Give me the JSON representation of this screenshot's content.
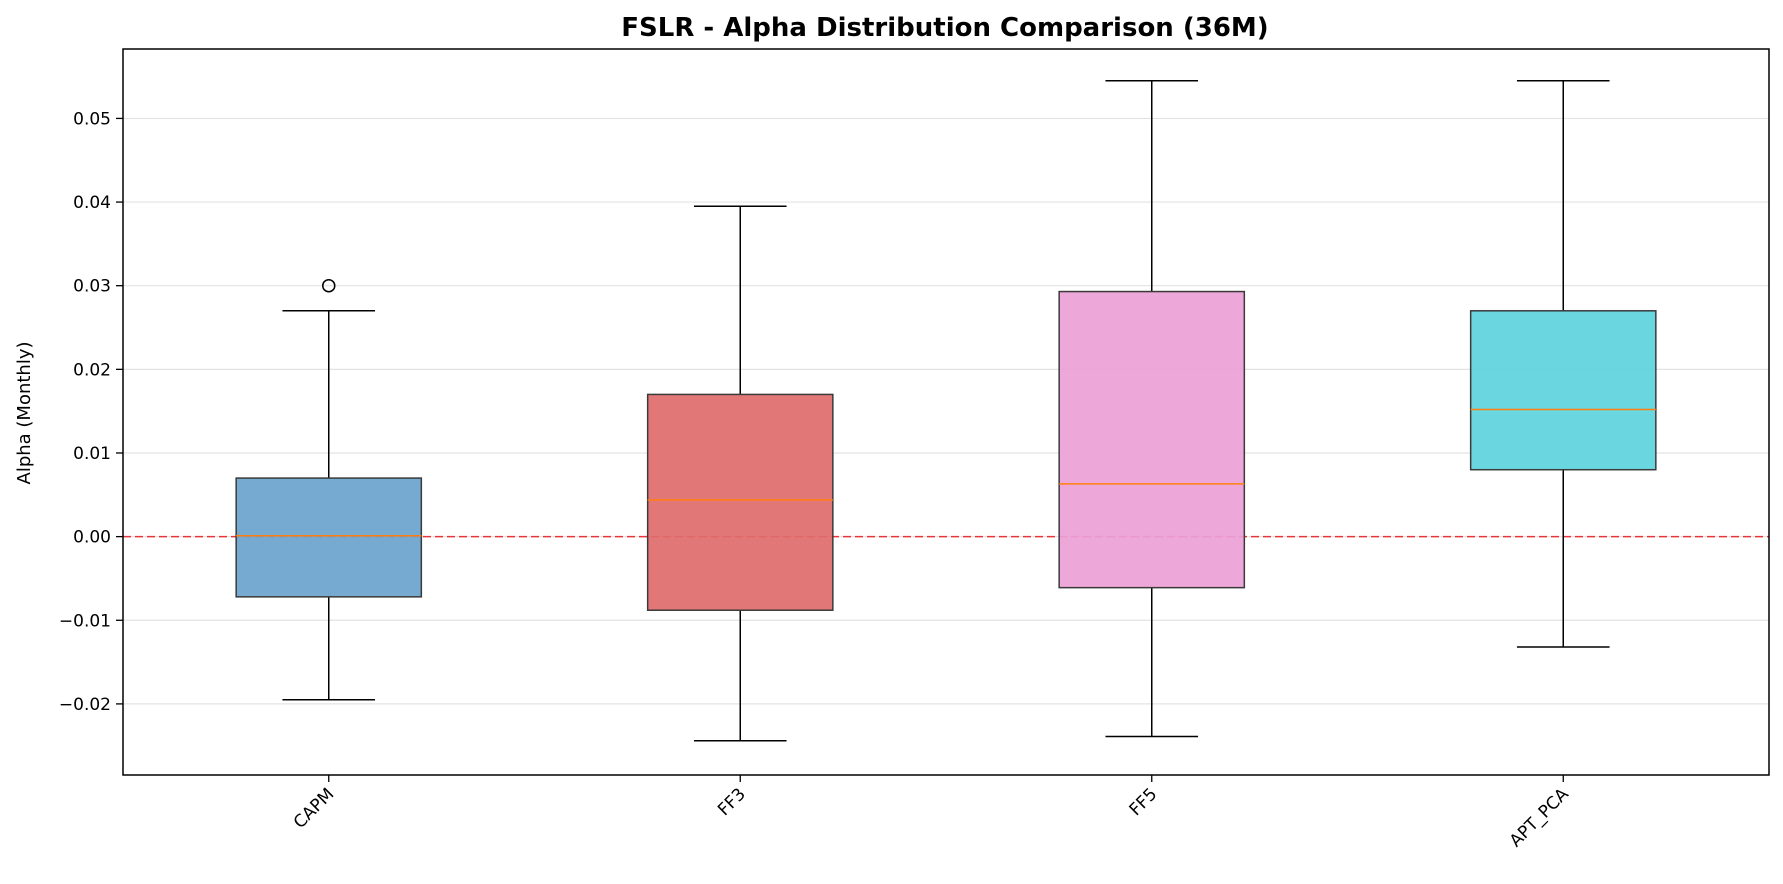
{
  "chart_data": {
    "type": "box",
    "title": "FSLR - Alpha Distribution Comparison (36M)",
    "xlabel": "",
    "ylabel": "Alpha (Monthly)",
    "ylim": [
      -0.0285,
      0.0583
    ],
    "yticks": [
      -0.02,
      -0.01,
      0.0,
      0.01,
      0.02,
      0.03,
      0.04,
      0.05
    ],
    "ytick_labels": [
      "−0.02",
      "−0.01",
      "0.00",
      "0.01",
      "0.02",
      "0.03",
      "0.04",
      "0.05"
    ],
    "grid": "horizontal",
    "reference_line": {
      "y": 0.0,
      "color": "#e8353a",
      "style": "dashed"
    },
    "series": [
      {
        "name": "CAPM",
        "color": "#6aa3cc",
        "whisker_low": -0.0195,
        "q1": -0.0072,
        "median": 0.0001,
        "q3": 0.007,
        "whisker_high": 0.027,
        "outliers": [
          0.03
        ]
      },
      {
        "name": "FF3",
        "color": "#e06b6b",
        "whisker_low": -0.0244,
        "q1": -0.0088,
        "median": 0.0044,
        "q3": 0.017,
        "whisker_high": 0.0395,
        "outliers": []
      },
      {
        "name": "FF5",
        "color": "#eba0d6",
        "whisker_low": -0.0239,
        "q1": -0.0061,
        "median": 0.0063,
        "q3": 0.0293,
        "whisker_high": 0.0545,
        "outliers": []
      },
      {
        "name": "APT_PCA",
        "color": "#5dd3dd",
        "whisker_low": -0.0132,
        "q1": 0.008,
        "median": 0.0152,
        "q3": 0.027,
        "whisker_high": 0.0545,
        "outliers": []
      }
    ],
    "median_color": "#ff7f0e"
  }
}
